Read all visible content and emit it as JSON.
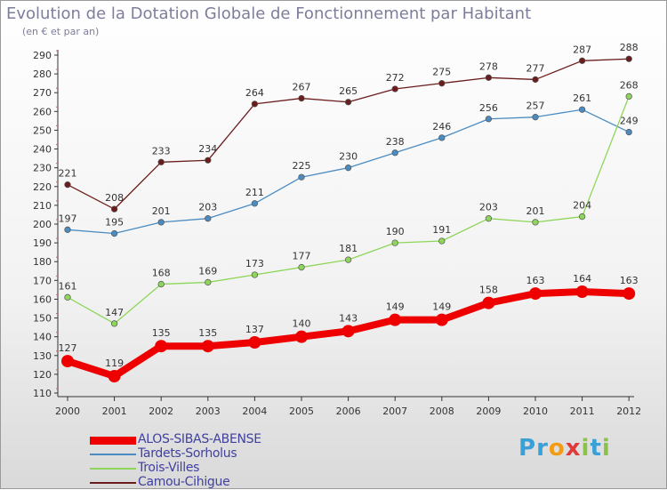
{
  "title": "Evolution de la Dotation Globale de Fonctionnement par Habitant",
  "subtitle": "(en € et par an)",
  "logo": {
    "letters": [
      "P",
      "r",
      "o",
      "x",
      "i",
      "t",
      "i"
    ],
    "colors": [
      "#3aa0d8",
      "#3aa0d8",
      "#f39c12",
      "#e03a3a",
      "#8bc34a",
      "#3aa0d8",
      "#8bc34a"
    ]
  },
  "chart_data": {
    "type": "line",
    "categories": [
      "2000",
      "2001",
      "2002",
      "2003",
      "2004",
      "2005",
      "2006",
      "2007",
      "2008",
      "2009",
      "2010",
      "2011",
      "2012"
    ],
    "ylim": [
      110,
      290
    ],
    "yticks": [
      110,
      120,
      130,
      140,
      150,
      160,
      170,
      180,
      190,
      200,
      210,
      220,
      230,
      240,
      250,
      260,
      270,
      280,
      290
    ],
    "grid": false,
    "legend_position": "bottom-left",
    "series": [
      {
        "name": "Camou-Cihigue",
        "color": "#6b1c1c",
        "values": [
          221,
          208,
          233,
          234,
          264,
          267,
          265,
          272,
          275,
          278,
          277,
          287,
          288
        ]
      },
      {
        "name": "Tardets-Sorholus",
        "color": "#4a8cc2",
        "values": [
          197,
          195,
          201,
          203,
          211,
          225,
          230,
          238,
          246,
          256,
          257,
          261,
          249
        ]
      },
      {
        "name": "Trois-Villes",
        "color": "#8ed65a",
        "values": [
          161,
          147,
          168,
          169,
          173,
          177,
          181,
          190,
          191,
          203,
          201,
          204,
          268
        ]
      },
      {
        "name": "ALOS-SIBAS-ABENSE",
        "color": "#ee0000",
        "values": [
          127,
          119,
          135,
          135,
          137,
          140,
          143,
          149,
          149,
          158,
          163,
          164,
          163
        ]
      }
    ],
    "legend_order": [
      "ALOS-SIBAS-ABENSE",
      "Tardets-Sorholus",
      "Trois-Villes",
      "Camou-Cihigue"
    ]
  }
}
